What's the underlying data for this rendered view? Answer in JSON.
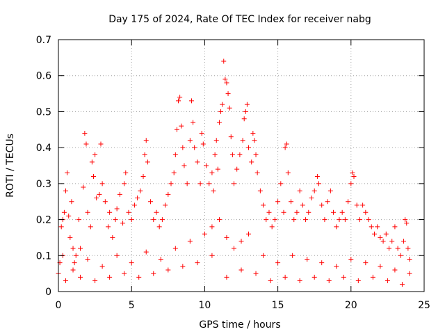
{
  "chart_data": {
    "type": "scatter",
    "title": "Day 175 of 2024, Rate Of TEC Index for receiver nabg",
    "xlabel": "GPS time / hours",
    "ylabel": "ROTI / TECUs",
    "xlim": [
      0,
      25
    ],
    "ylim": [
      0,
      0.7
    ],
    "xticks": [
      0,
      5,
      10,
      15,
      20,
      25
    ],
    "xtick_labels": [
      "0",
      "5",
      "10",
      "15",
      "20",
      "25"
    ],
    "yticks": [
      0,
      0.1,
      0.2,
      0.3,
      0.4,
      0.5,
      0.6,
      0.7
    ],
    "ytick_labels": [
      "0",
      "0.1",
      "0.2",
      "0.3",
      "0.4",
      "0.5",
      "0.6",
      "0.7"
    ],
    "grid": true,
    "marker": "+",
    "color": "#ff0000",
    "series": [
      {
        "points": [
          [
            0.0,
            0.05
          ],
          [
            0.1,
            0.08
          ],
          [
            0.2,
            0.18
          ],
          [
            0.3,
            0.2
          ],
          [
            0.4,
            0.22
          ],
          [
            0.5,
            0.28
          ],
          [
            0.6,
            0.33
          ],
          [
            0.7,
            0.21
          ],
          [
            0.8,
            0.15
          ],
          [
            0.9,
            0.25
          ],
          [
            1.0,
            0.12
          ],
          [
            1.1,
            0.08
          ],
          [
            1.2,
            0.1
          ],
          [
            1.4,
            0.2
          ],
          [
            1.5,
            0.12
          ],
          [
            1.7,
            0.29
          ],
          [
            1.8,
            0.44
          ],
          [
            1.9,
            0.41
          ],
          [
            2.0,
            0.22
          ],
          [
            2.2,
            0.18
          ],
          [
            2.3,
            0.36
          ],
          [
            2.4,
            0.32
          ],
          [
            2.5,
            0.38
          ],
          [
            2.6,
            0.26
          ],
          [
            2.8,
            0.27
          ],
          [
            2.9,
            0.41
          ],
          [
            3.0,
            0.3
          ],
          [
            3.2,
            0.25
          ],
          [
            3.4,
            0.18
          ],
          [
            3.5,
            0.22
          ],
          [
            3.7,
            0.15
          ],
          [
            3.9,
            0.2
          ],
          [
            4.0,
            0.23
          ],
          [
            4.2,
            0.27
          ],
          [
            4.4,
            0.19
          ],
          [
            4.5,
            0.3
          ],
          [
            4.6,
            0.33
          ],
          [
            4.8,
            0.22
          ],
          [
            5.0,
            0.2
          ],
          [
            5.2,
            0.24
          ],
          [
            5.4,
            0.26
          ],
          [
            5.6,
            0.28
          ],
          [
            5.8,
            0.32
          ],
          [
            5.9,
            0.38
          ],
          [
            6.0,
            0.42
          ],
          [
            6.1,
            0.36
          ],
          [
            6.3,
            0.25
          ],
          [
            6.5,
            0.2
          ],
          [
            6.7,
            0.22
          ],
          [
            6.9,
            0.18
          ],
          [
            7.1,
            0.2
          ],
          [
            7.3,
            0.24
          ],
          [
            7.5,
            0.27
          ],
          [
            7.7,
            0.3
          ],
          [
            7.9,
            0.33
          ],
          [
            8.0,
            0.38
          ],
          [
            8.1,
            0.45
          ],
          [
            8.2,
            0.53
          ],
          [
            8.3,
            0.54
          ],
          [
            8.4,
            0.46
          ],
          [
            8.5,
            0.4
          ],
          [
            8.6,
            0.35
          ],
          [
            8.8,
            0.3
          ],
          [
            9.0,
            0.42
          ],
          [
            9.1,
            0.53
          ],
          [
            9.2,
            0.47
          ],
          [
            9.3,
            0.4
          ],
          [
            9.5,
            0.36
          ],
          [
            9.7,
            0.3
          ],
          [
            9.8,
            0.44
          ],
          [
            9.9,
            0.41
          ],
          [
            10.1,
            0.35
          ],
          [
            10.3,
            0.3
          ],
          [
            10.5,
            0.33
          ],
          [
            10.6,
            0.28
          ],
          [
            10.7,
            0.38
          ],
          [
            10.8,
            0.42
          ],
          [
            10.9,
            0.34
          ],
          [
            11.0,
            0.47
          ],
          [
            11.1,
            0.5
          ],
          [
            11.2,
            0.52
          ],
          [
            11.3,
            0.64
          ],
          [
            11.4,
            0.59
          ],
          [
            11.5,
            0.58
          ],
          [
            11.6,
            0.55
          ],
          [
            11.7,
            0.51
          ],
          [
            11.8,
            0.43
          ],
          [
            11.9,
            0.38
          ],
          [
            12.0,
            0.3
          ],
          [
            12.2,
            0.34
          ],
          [
            12.4,
            0.38
          ],
          [
            12.6,
            0.42
          ],
          [
            12.7,
            0.48
          ],
          [
            12.8,
            0.5
          ],
          [
            12.9,
            0.52
          ],
          [
            13.0,
            0.4
          ],
          [
            13.2,
            0.36
          ],
          [
            13.3,
            0.44
          ],
          [
            13.4,
            0.42
          ],
          [
            13.5,
            0.38
          ],
          [
            13.6,
            0.33
          ],
          [
            13.8,
            0.28
          ],
          [
            14.0,
            0.24
          ],
          [
            14.2,
            0.2
          ],
          [
            14.4,
            0.22
          ],
          [
            14.6,
            0.18
          ],
          [
            14.8,
            0.2
          ],
          [
            15.0,
            0.25
          ],
          [
            15.2,
            0.3
          ],
          [
            15.4,
            0.22
          ],
          [
            15.5,
            0.4
          ],
          [
            15.6,
            0.41
          ],
          [
            15.7,
            0.33
          ],
          [
            15.9,
            0.25
          ],
          [
            16.1,
            0.2
          ],
          [
            16.3,
            0.22
          ],
          [
            16.5,
            0.28
          ],
          [
            16.7,
            0.24
          ],
          [
            16.9,
            0.2
          ],
          [
            17.1,
            0.22
          ],
          [
            17.3,
            0.26
          ],
          [
            17.5,
            0.28
          ],
          [
            17.7,
            0.32
          ],
          [
            17.8,
            0.3
          ],
          [
            18.0,
            0.24
          ],
          [
            18.2,
            0.2
          ],
          [
            18.4,
            0.25
          ],
          [
            18.6,
            0.28
          ],
          [
            18.8,
            0.22
          ],
          [
            19.0,
            0.18
          ],
          [
            19.2,
            0.2
          ],
          [
            19.4,
            0.22
          ],
          [
            19.6,
            0.2
          ],
          [
            19.8,
            0.25
          ],
          [
            20.0,
            0.3
          ],
          [
            20.1,
            0.33
          ],
          [
            20.2,
            0.32
          ],
          [
            20.4,
            0.24
          ],
          [
            20.6,
            0.2
          ],
          [
            20.8,
            0.24
          ],
          [
            21.0,
            0.22
          ],
          [
            21.2,
            0.2
          ],
          [
            21.4,
            0.18
          ],
          [
            21.6,
            0.16
          ],
          [
            21.8,
            0.18
          ],
          [
            22.0,
            0.15
          ],
          [
            22.2,
            0.14
          ],
          [
            22.4,
            0.16
          ],
          [
            22.6,
            0.12
          ],
          [
            22.8,
            0.14
          ],
          [
            23.0,
            0.18
          ],
          [
            23.2,
            0.12
          ],
          [
            23.4,
            0.1
          ],
          [
            23.6,
            0.14
          ],
          [
            23.7,
            0.2
          ],
          [
            23.8,
            0.19
          ],
          [
            23.9,
            0.12
          ],
          [
            24.0,
            0.09
          ],
          [
            0.3,
            0.1
          ],
          [
            1.0,
            0.06
          ],
          [
            2.0,
            0.09
          ],
          [
            3.0,
            0.07
          ],
          [
            4.0,
            0.1
          ],
          [
            5.0,
            0.08
          ],
          [
            6.0,
            0.11
          ],
          [
            7.0,
            0.09
          ],
          [
            8.0,
            0.12
          ],
          [
            9.0,
            0.14
          ],
          [
            10.0,
            0.16
          ],
          [
            10.5,
            0.18
          ],
          [
            11.0,
            0.2
          ],
          [
            11.5,
            0.15
          ],
          [
            12.0,
            0.12
          ],
          [
            12.5,
            0.14
          ],
          [
            13.0,
            0.16
          ],
          [
            14.0,
            0.1
          ],
          [
            15.0,
            0.08
          ],
          [
            16.0,
            0.1
          ],
          [
            17.0,
            0.09
          ],
          [
            18.0,
            0.08
          ],
          [
            19.0,
            0.07
          ],
          [
            20.0,
            0.09
          ],
          [
            21.0,
            0.08
          ],
          [
            22.0,
            0.07
          ],
          [
            23.0,
            0.06
          ],
          [
            24.0,
            0.05
          ],
          [
            0.5,
            0.03
          ],
          [
            1.5,
            0.04
          ],
          [
            2.5,
            0.03
          ],
          [
            3.5,
            0.04
          ],
          [
            4.5,
            0.05
          ],
          [
            5.5,
            0.04
          ],
          [
            6.5,
            0.05
          ],
          [
            7.5,
            0.06
          ],
          [
            8.5,
            0.07
          ],
          [
            9.5,
            0.08
          ],
          [
            10.5,
            0.1
          ],
          [
            11.5,
            0.04
          ],
          [
            12.5,
            0.06
          ],
          [
            13.5,
            0.05
          ],
          [
            14.5,
            0.03
          ],
          [
            15.5,
            0.04
          ],
          [
            16.5,
            0.03
          ],
          [
            17.5,
            0.04
          ],
          [
            18.5,
            0.03
          ],
          [
            19.5,
            0.04
          ],
          [
            20.5,
            0.03
          ],
          [
            21.5,
            0.04
          ],
          [
            22.5,
            0.03
          ],
          [
            23.5,
            0.02
          ]
        ]
      }
    ]
  }
}
